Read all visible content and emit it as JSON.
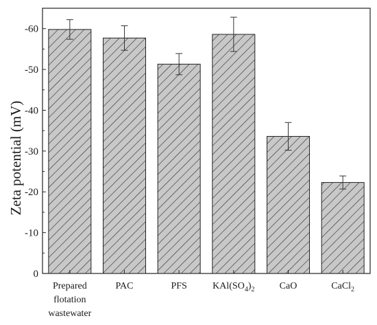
{
  "chart_data": {
    "type": "bar",
    "ylabel": "Zeta potential (mV)",
    "xlabel": "",
    "title": "",
    "ylim": [
      0,
      -65
    ],
    "yticks": [
      0,
      -10,
      -20,
      -30,
      -40,
      -50,
      -60
    ],
    "ytick_labels": [
      "0",
      "-10",
      "-20",
      "-30",
      "-40",
      "-50",
      "-60"
    ],
    "categories": [
      {
        "lines": [
          "Prepared",
          "flotation",
          "wastewater"
        ]
      },
      {
        "lines": [
          "PAC"
        ]
      },
      {
        "lines": [
          "PFS"
        ]
      },
      {
        "lines": [
          "KAl(SO",
          "4",
          ")",
          "2"
        ],
        "chem": true
      },
      {
        "lines": [
          "CaO"
        ]
      },
      {
        "lines": [
          "CaCl",
          "2"
        ],
        "chem2": true
      }
    ],
    "category_text": [
      "Prepared flotation wastewater",
      "PAC",
      "PFS",
      "KAl(SO4)2",
      "CaO",
      "CaCl2"
    ],
    "values": [
      -59.8,
      -57.7,
      -51.3,
      -58.6,
      -33.6,
      -22.3
    ],
    "errors": [
      2.4,
      3.0,
      2.6,
      4.2,
      3.4,
      1.6
    ],
    "bar_fill": "#c8c8c8",
    "hatch_color": "#2a2a2a",
    "grid": false
  }
}
